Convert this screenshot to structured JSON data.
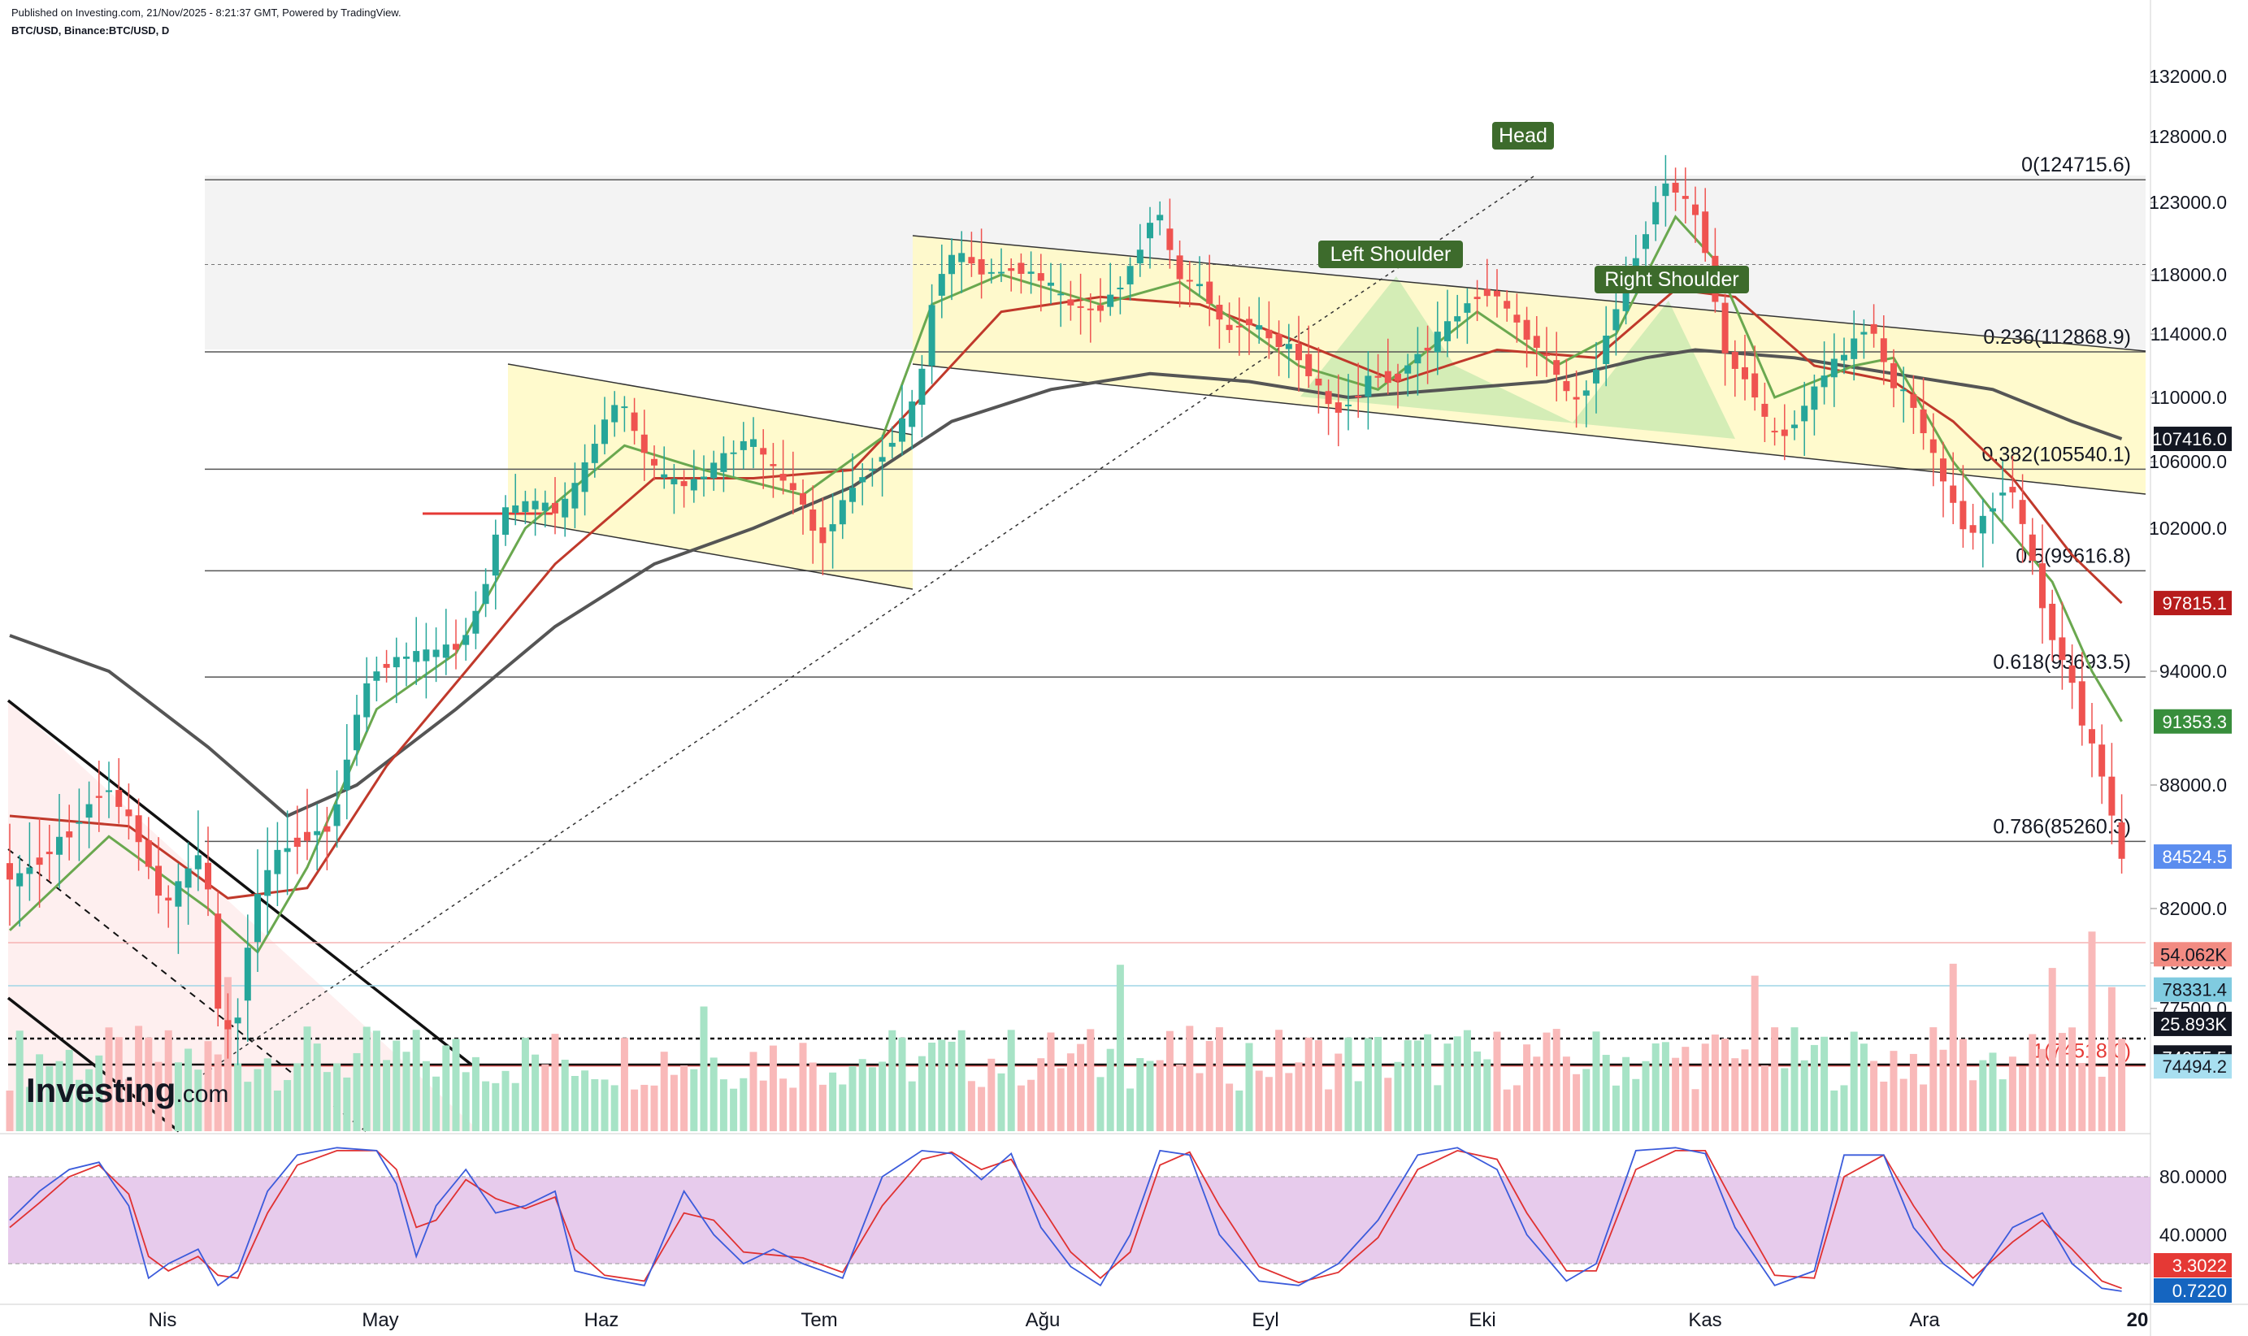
{
  "header": {
    "published": "Published on Investing.com, 21/Nov/2025 - 8:21:37 GMT, Powered by TradingView.",
    "symbol": "BTC/USD, Binance:BTC/USD, D"
  },
  "logo": {
    "brand": "Investing",
    "suffix": ".com"
  },
  "colors": {
    "bull": "#26a69a",
    "bear": "#ef5350",
    "sma_fast": "#6aa84f",
    "sma_mid": "#c0392b",
    "sma_slow": "#555555",
    "fib_zone": "#fff9c4",
    "pattern_fill": "#b7e4a7",
    "stoch_bg": "#e1bee7",
    "stoch_k": "#3b5bdb",
    "stoch_d": "#e03131"
  },
  "chart_data": {
    "type": "candlestick",
    "price_axis": {
      "ticks": [
        "132000.0",
        "128000.0",
        "123000.0",
        "118000.0",
        "114000.0",
        "110000.0",
        "106000.0",
        "102000.0",
        "94000.0",
        "88000.0",
        "82000.0",
        "79500.0",
        "77500.0"
      ],
      "range": [
        71000,
        135000
      ]
    },
    "time_axis": {
      "labels": [
        "Nis",
        "May",
        "Haz",
        "Tem",
        "Ağu",
        "Eyl",
        "Eki",
        "Kas",
        "Ara",
        "20"
      ]
    },
    "fib_levels": [
      {
        "label": "0(124715.6)",
        "value": 124715.6
      },
      {
        "label": "0.236(112868.9)",
        "value": 112868.9
      },
      {
        "label": "0.382(105540.1)",
        "value": 105540.1
      },
      {
        "label": "0.5(99616.8)",
        "value": 99616.8
      },
      {
        "label": "0.618(93693.5)",
        "value": 93693.5
      },
      {
        "label": "0.786(85260.3)",
        "value": 85260.3
      },
      {
        "label": "1(74518.0)",
        "value": 74518.0
      }
    ],
    "annotations": [
      "Head",
      "Left Shoulder",
      "Right Shoulder"
    ],
    "price_badges": [
      {
        "label": "107416.0",
        "value": 107416.0,
        "color": "#131722"
      },
      {
        "label": "97815.1",
        "value": 97815.1,
        "color": "#b71c1c"
      },
      {
        "label": "91353.3",
        "value": 91353.3,
        "color": "#388e3c"
      },
      {
        "label": "84524.5",
        "value": 84524.5,
        "color": "#5b8def"
      },
      {
        "label": "54.062K",
        "value": 79900,
        "color": "#f28b82"
      },
      {
        "label": "78331.4",
        "value": 78331.4,
        "color": "#80cbe0"
      },
      {
        "label": "25.893K",
        "value": 76700,
        "color": "#131722"
      },
      {
        "label": "74955.5",
        "value": 74955.5,
        "color": "#131722"
      },
      {
        "label": "74494.2",
        "value": 74494.2,
        "color": "#a8dff0"
      }
    ],
    "price_path": [
      [
        0,
        83000
      ],
      [
        6,
        85500
      ],
      [
        10,
        88000
      ],
      [
        13,
        86000
      ],
      [
        16,
        82000
      ],
      [
        18,
        83500
      ],
      [
        20,
        85000
      ],
      [
        21.5,
        77000
      ],
      [
        23,
        76000
      ],
      [
        25,
        82000
      ],
      [
        27,
        84500
      ],
      [
        30,
        85500
      ],
      [
        33,
        86000
      ],
      [
        35,
        91000
      ],
      [
        37,
        94000
      ],
      [
        40,
        94800
      ],
      [
        43,
        95000
      ],
      [
        46,
        95500
      ],
      [
        48,
        98000
      ],
      [
        50,
        103000
      ],
      [
        53,
        103500
      ],
      [
        56,
        103000
      ],
      [
        58,
        105000
      ],
      [
        60,
        108000
      ],
      [
        62,
        110000
      ],
      [
        64,
        107000
      ],
      [
        66,
        105000
      ],
      [
        69,
        104500
      ],
      [
        72,
        106000
      ],
      [
        75,
        107500
      ],
      [
        78,
        105000
      ],
      [
        80,
        104000
      ],
      [
        82,
        101000
      ],
      [
        84,
        103000
      ],
      [
        86,
        105000
      ],
      [
        88,
        106000
      ],
      [
        90,
        108000
      ],
      [
        92,
        110000
      ],
      [
        94,
        118000
      ],
      [
        96,
        119500
      ],
      [
        99,
        118000
      ],
      [
        102,
        118500
      ],
      [
        105,
        117500
      ],
      [
        107,
        116000
      ],
      [
        110,
        115500
      ],
      [
        112,
        117000
      ],
      [
        114,
        119000
      ],
      [
        116,
        123000
      ],
      [
        118,
        118000
      ],
      [
        121,
        117000
      ],
      [
        123,
        114000
      ],
      [
        125,
        115000
      ],
      [
        128,
        113500
      ],
      [
        130,
        113000
      ],
      [
        132,
        111000
      ],
      [
        134,
        109000
      ],
      [
        136,
        110000
      ],
      [
        138,
        111500
      ],
      [
        140,
        111000
      ],
      [
        142,
        112500
      ],
      [
        144,
        113500
      ],
      [
        146,
        115000
      ],
      [
        148,
        116500
      ],
      [
        150,
        117000
      ],
      [
        152,
        115000
      ],
      [
        154,
        113500
      ],
      [
        156,
        112000
      ],
      [
        158,
        109500
      ],
      [
        160,
        111000
      ],
      [
        162,
        115000
      ],
      [
        164,
        118500
      ],
      [
        166,
        122000
      ],
      [
        167,
        124700
      ],
      [
        169,
        123500
      ],
      [
        171,
        121500
      ],
      [
        173,
        114000
      ],
      [
        174,
        112000
      ],
      [
        176,
        111000
      ],
      [
        178,
        107500
      ],
      [
        180,
        108000
      ],
      [
        182,
        110000
      ],
      [
        184,
        112000
      ],
      [
        186,
        113000
      ],
      [
        188,
        115000
      ],
      [
        190,
        111000
      ],
      [
        192,
        110000
      ],
      [
        194,
        107000
      ],
      [
        196,
        104000
      ],
      [
        198,
        101500
      ],
      [
        200,
        103000
      ],
      [
        202,
        105000
      ],
      [
        204,
        101000
      ],
      [
        206,
        96500
      ],
      [
        208,
        94000
      ],
      [
        210,
        90500
      ],
      [
        212,
        88000
      ],
      [
        213,
        84500
      ]
    ],
    "sma_fast": [
      [
        0,
        81000
      ],
      [
        10,
        85500
      ],
      [
        20,
        82000
      ],
      [
        25,
        80000
      ],
      [
        30,
        84000
      ],
      [
        37,
        92000
      ],
      [
        45,
        95000
      ],
      [
        52,
        102000
      ],
      [
        62,
        107000
      ],
      [
        70,
        105500
      ],
      [
        80,
        104000
      ],
      [
        88,
        107500
      ],
      [
        93,
        116000
      ],
      [
        100,
        118000
      ],
      [
        110,
        116000
      ],
      [
        118,
        117500
      ],
      [
        130,
        112000
      ],
      [
        138,
        110500
      ],
      [
        148,
        115500
      ],
      [
        156,
        112000
      ],
      [
        162,
        114000
      ],
      [
        168,
        122000
      ],
      [
        172,
        119000
      ],
      [
        178,
        110000
      ],
      [
        186,
        112000
      ],
      [
        190,
        112500
      ],
      [
        196,
        106000
      ],
      [
        200,
        103000
      ],
      [
        206,
        99000
      ],
      [
        210,
        94000
      ],
      [
        213,
        91353
      ]
    ],
    "sma_mid": [
      [
        0,
        86500
      ],
      [
        12,
        86000
      ],
      [
        22,
        82500
      ],
      [
        30,
        83000
      ],
      [
        38,
        89000
      ],
      [
        46,
        94000
      ],
      [
        55,
        100000
      ],
      [
        65,
        105000
      ],
      [
        75,
        105000
      ],
      [
        85,
        105500
      ],
      [
        92,
        110000
      ],
      [
        100,
        115500
      ],
      [
        110,
        116500
      ],
      [
        120,
        116000
      ],
      [
        130,
        113500
      ],
      [
        140,
        111000
      ],
      [
        150,
        113000
      ],
      [
        160,
        112500
      ],
      [
        168,
        117000
      ],
      [
        174,
        116500
      ],
      [
        182,
        112000
      ],
      [
        190,
        111000
      ],
      [
        196,
        108500
      ],
      [
        202,
        105000
      ],
      [
        208,
        100500
      ],
      [
        213,
        97815
      ]
    ],
    "sma_slow": [
      [
        0,
        96000
      ],
      [
        10,
        94000
      ],
      [
        20,
        90000
      ],
      [
        28,
        86500
      ],
      [
        35,
        88000
      ],
      [
        45,
        92000
      ],
      [
        55,
        96500
      ],
      [
        65,
        100000
      ],
      [
        75,
        102000
      ],
      [
        85,
        104500
      ],
      [
        95,
        108500
      ],
      [
        105,
        110500
      ],
      [
        115,
        111500
      ],
      [
        125,
        111000
      ],
      [
        135,
        110000
      ],
      [
        145,
        110500
      ],
      [
        155,
        111000
      ],
      [
        165,
        112500
      ],
      [
        170,
        113000
      ],
      [
        180,
        112500
      ],
      [
        190,
        111500
      ],
      [
        200,
        110500
      ],
      [
        208,
        108500
      ],
      [
        213,
        107416
      ]
    ],
    "stochastic": {
      "ticks": [
        "80.0000",
        "40.0000"
      ],
      "bands": [
        80,
        20
      ],
      "badges": [
        {
          "label": "3.3022",
          "value": 3.3022
        },
        {
          "label": "0.7220",
          "value": 0.722
        }
      ],
      "k": [
        [
          0,
          50
        ],
        [
          3,
          70
        ],
        [
          6,
          85
        ],
        [
          9,
          90
        ],
        [
          12,
          60
        ],
        [
          14,
          10
        ],
        [
          16,
          20
        ],
        [
          19,
          30
        ],
        [
          21,
          5
        ],
        [
          23,
          15
        ],
        [
          26,
          70
        ],
        [
          29,
          95
        ],
        [
          33,
          100
        ],
        [
          37,
          98
        ],
        [
          39,
          75
        ],
        [
          41,
          25
        ],
        [
          43,
          60
        ],
        [
          46,
          85
        ],
        [
          49,
          55
        ],
        [
          52,
          60
        ],
        [
          55,
          70
        ],
        [
          57,
          15
        ],
        [
          60,
          10
        ],
        [
          64,
          5
        ],
        [
          68,
          70
        ],
        [
          71,
          40
        ],
        [
          74,
          20
        ],
        [
          77,
          30
        ],
        [
          80,
          20
        ],
        [
          84,
          10
        ],
        [
          88,
          80
        ],
        [
          92,
          98
        ],
        [
          95,
          96
        ],
        [
          98,
          78
        ],
        [
          101,
          96
        ],
        [
          104,
          45
        ],
        [
          107,
          18
        ],
        [
          110,
          5
        ],
        [
          113,
          40
        ],
        [
          116,
          98
        ],
        [
          119,
          95
        ],
        [
          122,
          40
        ],
        [
          126,
          8
        ],
        [
          130,
          5
        ],
        [
          134,
          20
        ],
        [
          138,
          50
        ],
        [
          142,
          95
        ],
        [
          146,
          100
        ],
        [
          150,
          85
        ],
        [
          153,
          40
        ],
        [
          157,
          8
        ],
        [
          160,
          20
        ],
        [
          164,
          98
        ],
        [
          168,
          100
        ],
        [
          171,
          96
        ],
        [
          174,
          45
        ],
        [
          178,
          5
        ],
        [
          182,
          15
        ],
        [
          185,
          95
        ],
        [
          189,
          95
        ],
        [
          192,
          45
        ],
        [
          195,
          20
        ],
        [
          198,
          5
        ],
        [
          202,
          45
        ],
        [
          205,
          55
        ],
        [
          208,
          20
        ],
        [
          211,
          3
        ],
        [
          213,
          1
        ]
      ],
      "d": [
        [
          0,
          45
        ],
        [
          3,
          62
        ],
        [
          6,
          80
        ],
        [
          9,
          88
        ],
        [
          12,
          68
        ],
        [
          14,
          25
        ],
        [
          16,
          15
        ],
        [
          19,
          25
        ],
        [
          21,
          12
        ],
        [
          23,
          10
        ],
        [
          26,
          55
        ],
        [
          29,
          88
        ],
        [
          33,
          98
        ],
        [
          37,
          98
        ],
        [
          39,
          85
        ],
        [
          41,
          45
        ],
        [
          43,
          50
        ],
        [
          46,
          78
        ],
        [
          49,
          65
        ],
        [
          52,
          58
        ],
        [
          55,
          66
        ],
        [
          57,
          30
        ],
        [
          60,
          12
        ],
        [
          64,
          8
        ],
        [
          68,
          55
        ],
        [
          71,
          50
        ],
        [
          74,
          28
        ],
        [
          77,
          26
        ],
        [
          80,
          24
        ],
        [
          84,
          14
        ],
        [
          88,
          60
        ],
        [
          92,
          92
        ],
        [
          95,
          97
        ],
        [
          98,
          85
        ],
        [
          101,
          92
        ],
        [
          104,
          60
        ],
        [
          107,
          28
        ],
        [
          110,
          10
        ],
        [
          113,
          28
        ],
        [
          116,
          88
        ],
        [
          119,
          97
        ],
        [
          122,
          60
        ],
        [
          126,
          18
        ],
        [
          130,
          7
        ],
        [
          134,
          14
        ],
        [
          138,
          38
        ],
        [
          142,
          85
        ],
        [
          146,
          98
        ],
        [
          150,
          92
        ],
        [
          153,
          55
        ],
        [
          157,
          15
        ],
        [
          160,
          15
        ],
        [
          164,
          85
        ],
        [
          168,
          98
        ],
        [
          171,
          98
        ],
        [
          174,
          60
        ],
        [
          178,
          12
        ],
        [
          182,
          10
        ],
        [
          185,
          80
        ],
        [
          189,
          95
        ],
        [
          192,
          60
        ],
        [
          195,
          30
        ],
        [
          198,
          10
        ],
        [
          202,
          35
        ],
        [
          205,
          50
        ],
        [
          208,
          30
        ],
        [
          211,
          8
        ],
        [
          213,
          3
        ]
      ]
    }
  }
}
